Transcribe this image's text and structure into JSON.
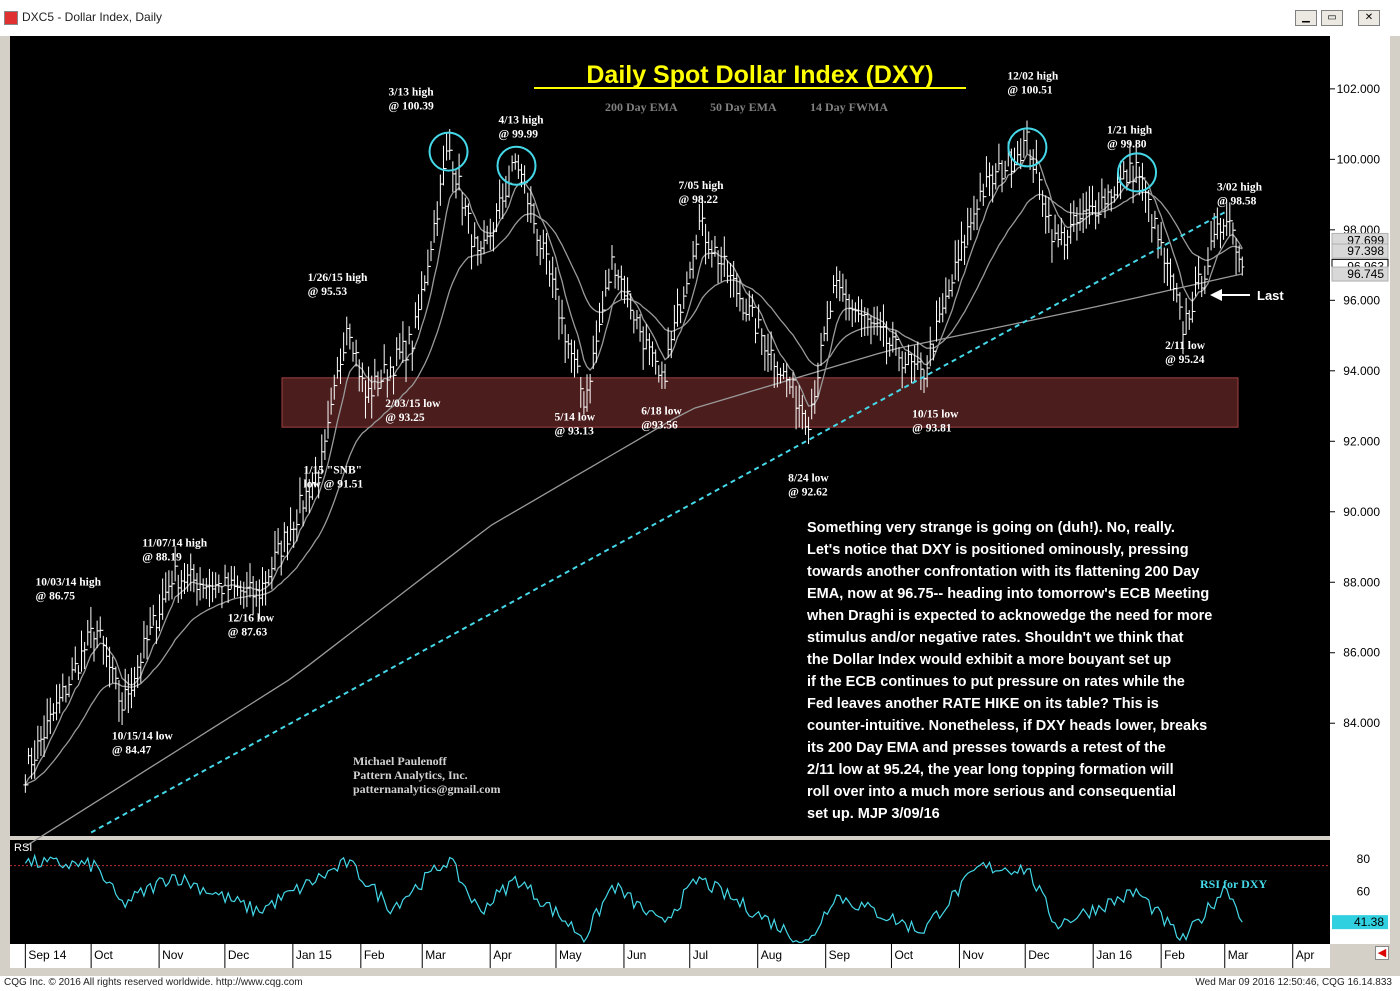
{
  "window": {
    "title": "DXC5 - Dollar Index, Daily",
    "buttons": [
      "minimize",
      "restore",
      "close"
    ]
  },
  "status": {
    "left": "CQG Inc. © 2016 All rights reserved worldwide. http://www.cqg.com",
    "right": "Wed Mar 09 2016 12:50:46, CQG 16.14.833"
  },
  "colors": {
    "background": "#000000",
    "title_yellow": "#ffff00",
    "price_bars": "#ffffff",
    "ema_lines": "#9a9a9a",
    "trendline": "#44d8e8",
    "circles": "#44d8e8",
    "support_band": "#8a3535",
    "rsi_line": "#44d8e8",
    "annotation_text": "#ffffff"
  },
  "chart_data": [
    {
      "type": "line",
      "title": "Daily Spot Dollar Index (DXY)",
      "legend": [
        "200 Day EMA",
        "50 Day EMA",
        "14 Day FWMA"
      ],
      "ylim": [
        80.8,
        103.5
      ],
      "y_ticks": [
        "102.000",
        "100.000",
        "98.000",
        "96.000",
        "94.000",
        "92.000",
        "90.000",
        "88.000",
        "86.000",
        "84.000"
      ],
      "y_tick_values": [
        102,
        100,
        98,
        96,
        94,
        92,
        90,
        88,
        86,
        84
      ],
      "price_boxes": [
        {
          "label": "97.699",
          "value": 97.699
        },
        {
          "label": "97.398",
          "value": 97.398
        },
        {
          "label": "96.963",
          "value": 96.963,
          "highlight": true
        },
        {
          "label": "96.745",
          "value": 96.745
        }
      ],
      "x_labels": [
        "Sep 14",
        "Oct",
        "Nov",
        "Dec",
        "Jan 15",
        "Feb",
        "Mar",
        "Apr",
        "May",
        "Jun",
        "Jul",
        "Aug",
        "Sep",
        "Oct",
        "Nov",
        "Dec",
        "Jan 16",
        "Feb",
        "Mar",
        "Apr"
      ],
      "x_label_dates": [
        "2014-09-01",
        "2014-10-01",
        "2014-11-01",
        "2014-12-01",
        "2015-01-01",
        "2015-02-01",
        "2015-03-01",
        "2015-04-01",
        "2015-05-01",
        "2015-06-01",
        "2015-07-01",
        "2015-08-01",
        "2015-09-01",
        "2015-10-01",
        "2015-11-01",
        "2015-12-01",
        "2016-01-01",
        "2016-02-01",
        "2016-03-01",
        "2016-04-01"
      ],
      "key_points": [
        {
          "date": "2014-09-01",
          "value": 82.6
        },
        {
          "date": "2014-10-03",
          "value": 86.75
        },
        {
          "date": "2014-10-15",
          "value": 84.47
        },
        {
          "date": "2014-11-07",
          "value": 88.19
        },
        {
          "date": "2014-12-16",
          "value": 87.63
        },
        {
          "date": "2015-01-15",
          "value": 91.51
        },
        {
          "date": "2015-01-26",
          "value": 95.53
        },
        {
          "date": "2015-02-03",
          "value": 93.25
        },
        {
          "date": "2015-02-25",
          "value": 94.9
        },
        {
          "date": "2015-03-13",
          "value": 100.39
        },
        {
          "date": "2015-03-27",
          "value": 97.0
        },
        {
          "date": "2015-04-13",
          "value": 99.99
        },
        {
          "date": "2015-05-14",
          "value": 93.13
        },
        {
          "date": "2015-05-27",
          "value": 97.2
        },
        {
          "date": "2015-06-18",
          "value": 93.56
        },
        {
          "date": "2015-07-05",
          "value": 98.22
        },
        {
          "date": "2015-08-24",
          "value": 92.62
        },
        {
          "date": "2015-09-05",
          "value": 96.3
        },
        {
          "date": "2015-10-15",
          "value": 93.81
        },
        {
          "date": "2015-11-10",
          "value": 99.0
        },
        {
          "date": "2015-12-02",
          "value": 100.51
        },
        {
          "date": "2015-12-15",
          "value": 97.6
        },
        {
          "date": "2016-01-21",
          "value": 99.8
        },
        {
          "date": "2016-02-11",
          "value": 95.24
        },
        {
          "date": "2016-03-02",
          "value": 98.58
        },
        {
          "date": "2016-03-09",
          "value": 96.96
        }
      ],
      "ema200_points": [
        {
          "date": "2014-09-01",
          "value": 80.5
        },
        {
          "date": "2015-01-01",
          "value": 85.3
        },
        {
          "date": "2015-04-01",
          "value": 89.6
        },
        {
          "date": "2015-07-01",
          "value": 92.9
        },
        {
          "date": "2015-10-01",
          "value": 94.6
        },
        {
          "date": "2016-01-01",
          "value": 95.8
        },
        {
          "date": "2016-03-09",
          "value": 96.75
        }
      ],
      "annotations": [
        {
          "text": [
            "3/13 high",
            "@ 100.39"
          ],
          "date": "2015-03-13",
          "value": 100.39
        },
        {
          "text": [
            "4/13 high",
            "@ 99.99"
          ],
          "date": "2015-04-13",
          "value": 99.99
        },
        {
          "text": [
            "12/02 high",
            "@ 100.51"
          ],
          "date": "2015-12-02",
          "value": 100.51
        },
        {
          "text": [
            "1/21 high",
            "@ 99.80"
          ],
          "date": "2016-01-21",
          "value": 99.8
        },
        {
          "text": [
            "3/02 high",
            "@ 98.58"
          ],
          "date": "2016-03-02",
          "value": 98.58
        },
        {
          "text": [
            "7/05 high",
            "@ 98.22"
          ],
          "date": "2015-07-05",
          "value": 98.22
        },
        {
          "text": [
            "1/26/15 high",
            "@ 95.53"
          ],
          "date": "2015-01-26",
          "value": 95.53
        },
        {
          "text": [
            "2/03/15 low",
            "@ 93.25"
          ],
          "date": "2015-02-03",
          "value": 93.25
        },
        {
          "text": [
            "5/14 low",
            "@ 93.13"
          ],
          "date": "2015-05-14",
          "value": 93.13
        },
        {
          "text": [
            "6/18 low",
            "@93.56"
          ],
          "date": "2015-06-18",
          "value": 93.56
        },
        {
          "text": [
            "8/24 low",
            "@ 92.62"
          ],
          "date": "2015-08-24",
          "value": 92.62
        },
        {
          "text": [
            "10/15 low",
            "@ 93.81"
          ],
          "date": "2015-10-15",
          "value": 93.81
        },
        {
          "text": [
            "2/11 low",
            "@ 95.24"
          ],
          "date": "2016-02-11",
          "value": 95.24
        },
        {
          "text": [
            "1/15 \"SNB\"",
            "low @ 91.51"
          ],
          "date": "2015-01-15",
          "value": 91.51
        },
        {
          "text": [
            "11/07/14 high",
            "@ 88.19"
          ],
          "date": "2014-11-07",
          "value": 88.19
        },
        {
          "text": [
            "12/16 low",
            "@ 87.63"
          ],
          "date": "2014-12-16",
          "value": 87.63
        },
        {
          "text": [
            "10/03/14 high",
            "@ 86.75"
          ],
          "date": "2014-10-03",
          "value": 86.75
        },
        {
          "text": [
            "10/15/14 low",
            "@ 84.47"
          ],
          "date": "2014-10-15",
          "value": 84.47
        }
      ],
      "circled_highs": [
        "2015-03-13",
        "2015-04-13",
        "2015-12-02",
        "2016-01-21"
      ],
      "support_zone": {
        "from": 92.4,
        "to": 93.8
      },
      "trendline": {
        "from": {
          "date": "2014-10-01",
          "value": 80.9
        },
        "to": {
          "date": "2016-03-01",
          "value": 98.5
        }
      },
      "last_label": "Last",
      "author": [
        "Michael Paulenoff",
        "Pattern Analytics, Inc.",
        "patternanalytics@gmail.com"
      ],
      "commentary": [
        "Something very strange is going on (duh!).  No, really.",
        "Let's notice that DXY is positioned ominously, pressing",
        "towards another confrontation with its flattening 200 Day",
        "EMA, now at 96.75-- heading into tomorrow's ECB Meeting",
        "when Draghi is expected to acknowedge the need for more",
        "stimulus and/or negative rates. Shouldn't we think that",
        "the Dollar Index would exhibit a more bouyant set up",
        "if the ECB continues to put pressure on rates while the",
        "Fed leaves another RATE HIKE on its table? This is",
        "counter-intuitive. Nonetheless, if DXY heads lower, breaks",
        "its 200 Day EMA and presses towards a retest of the",
        "2/11 low at 95.24, the year long topping formation will",
        "roll over into a much more serious and consequential",
        "set up.  MJP 3/09/16"
      ]
    },
    {
      "type": "line",
      "name": "RSI",
      "label": "RSI for DXY",
      "ylim": [
        28,
        88
      ],
      "y_ticks": [
        "80",
        "60"
      ],
      "y_tick_values": [
        80,
        60
      ],
      "reference_line": 76,
      "last_value_label": "41.38",
      "last_value": 41.38,
      "key_points": [
        {
          "date": "2014-09-01",
          "value": 78
        },
        {
          "date": "2014-10-03",
          "value": 76
        },
        {
          "date": "2014-10-15",
          "value": 52
        },
        {
          "date": "2014-11-07",
          "value": 70
        },
        {
          "date": "2014-12-16",
          "value": 48
        },
        {
          "date": "2015-01-26",
          "value": 78
        },
        {
          "date": "2015-02-15",
          "value": 50
        },
        {
          "date": "2015-03-13",
          "value": 80
        },
        {
          "date": "2015-03-27",
          "value": 48
        },
        {
          "date": "2015-04-13",
          "value": 68
        },
        {
          "date": "2015-05-14",
          "value": 32
        },
        {
          "date": "2015-05-27",
          "value": 64
        },
        {
          "date": "2015-06-18",
          "value": 40
        },
        {
          "date": "2015-07-05",
          "value": 68
        },
        {
          "date": "2015-08-24",
          "value": 28
        },
        {
          "date": "2015-09-05",
          "value": 58
        },
        {
          "date": "2015-10-15",
          "value": 36
        },
        {
          "date": "2015-11-10",
          "value": 75
        },
        {
          "date": "2015-12-02",
          "value": 74
        },
        {
          "date": "2015-12-15",
          "value": 40
        },
        {
          "date": "2016-01-21",
          "value": 60
        },
        {
          "date": "2016-02-11",
          "value": 30
        },
        {
          "date": "2016-03-02",
          "value": 64
        },
        {
          "date": "2016-03-09",
          "value": 41.38
        }
      ]
    }
  ]
}
